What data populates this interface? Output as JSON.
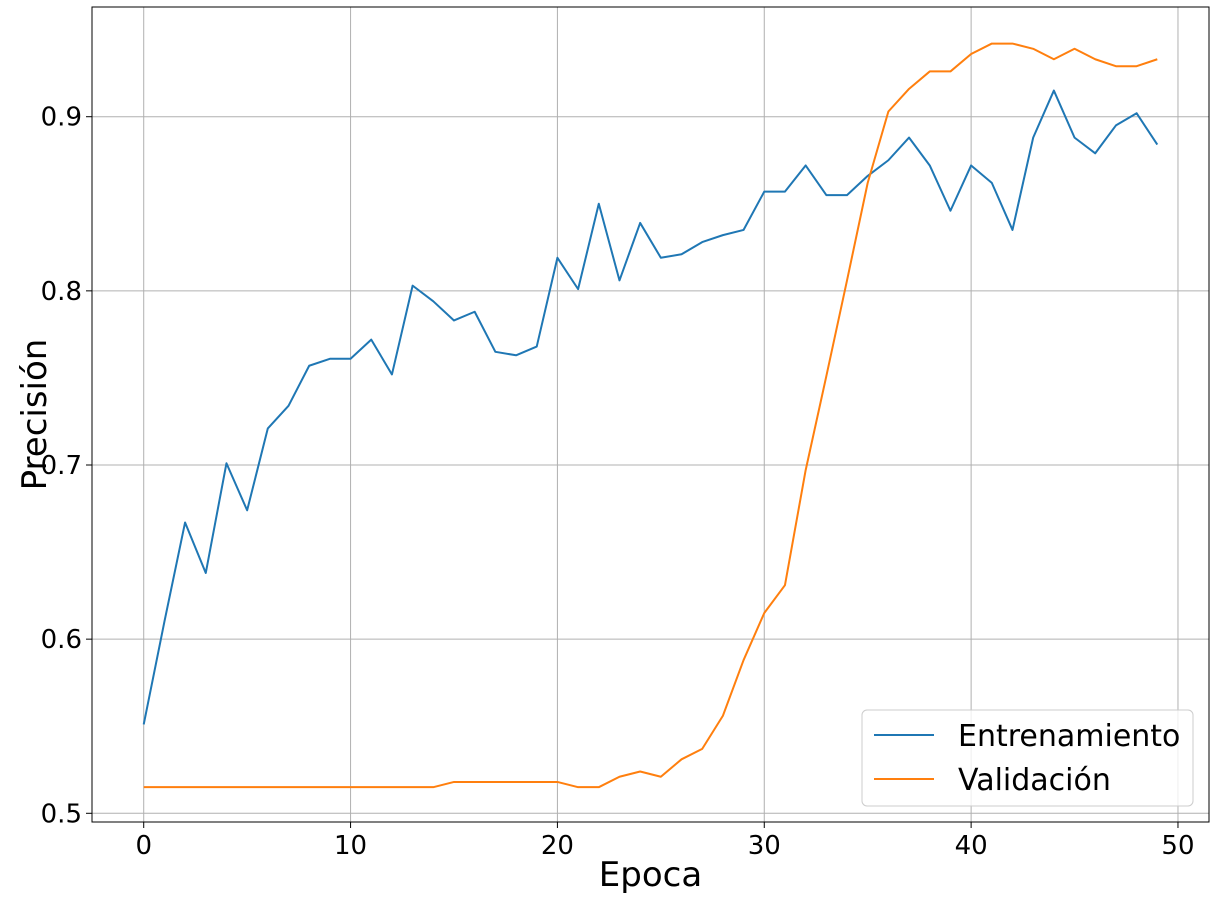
{
  "chart_data": {
    "type": "line",
    "xlabel": "Epoca",
    "ylabel": "Precisión",
    "xlim": [
      -2.5,
      51.5
    ],
    "ylim": [
      0.495,
      0.963
    ],
    "xticks": [
      0,
      10,
      20,
      30,
      40,
      50
    ],
    "xtick_labels": [
      "0",
      "10",
      "20",
      "30",
      "40",
      "50"
    ],
    "yticks": [
      0.5,
      0.6,
      0.7,
      0.8,
      0.9
    ],
    "ytick_labels": [
      "0.5",
      "0.6",
      "0.7",
      "0.8",
      "0.9"
    ],
    "grid": true,
    "legend_position": "bottom-right",
    "x": [
      0,
      1,
      2,
      3,
      4,
      5,
      6,
      7,
      8,
      9,
      10,
      11,
      12,
      13,
      14,
      15,
      16,
      17,
      18,
      19,
      20,
      21,
      22,
      23,
      24,
      25,
      26,
      27,
      28,
      29,
      30,
      31,
      32,
      33,
      34,
      35,
      36,
      37,
      38,
      39,
      40,
      41,
      42,
      43,
      44,
      45,
      46,
      47,
      48,
      49
    ],
    "series": [
      {
        "name": "Entrenamiento",
        "color": "#1f77b4",
        "values": [
          0.551,
          0.61,
          0.667,
          0.638,
          0.701,
          0.674,
          0.721,
          0.734,
          0.757,
          0.761,
          0.761,
          0.772,
          0.752,
          0.803,
          0.794,
          0.783,
          0.788,
          0.765,
          0.763,
          0.768,
          0.819,
          0.801,
          0.85,
          0.806,
          0.839,
          0.819,
          0.821,
          0.828,
          0.832,
          0.835,
          0.857,
          0.857,
          0.872,
          0.855,
          0.855,
          0.866,
          0.875,
          0.888,
          0.872,
          0.846,
          0.872,
          0.862,
          0.835,
          0.888,
          0.915,
          0.888,
          0.879,
          0.895,
          0.902,
          0.884
        ]
      },
      {
        "name": "Validación",
        "color": "#ff7f0e",
        "values": [
          0.515,
          0.515,
          0.515,
          0.515,
          0.515,
          0.515,
          0.515,
          0.515,
          0.515,
          0.515,
          0.515,
          0.515,
          0.515,
          0.515,
          0.515,
          0.518,
          0.518,
          0.518,
          0.518,
          0.518,
          0.518,
          0.515,
          0.515,
          0.521,
          0.524,
          0.521,
          0.531,
          0.537,
          0.556,
          0.588,
          0.615,
          0.631,
          0.697,
          0.751,
          0.806,
          0.862,
          0.903,
          0.916,
          0.926,
          0.926,
          0.936,
          0.942,
          0.942,
          0.939,
          0.933,
          0.939,
          0.933,
          0.929,
          0.929,
          0.933
        ]
      }
    ]
  }
}
